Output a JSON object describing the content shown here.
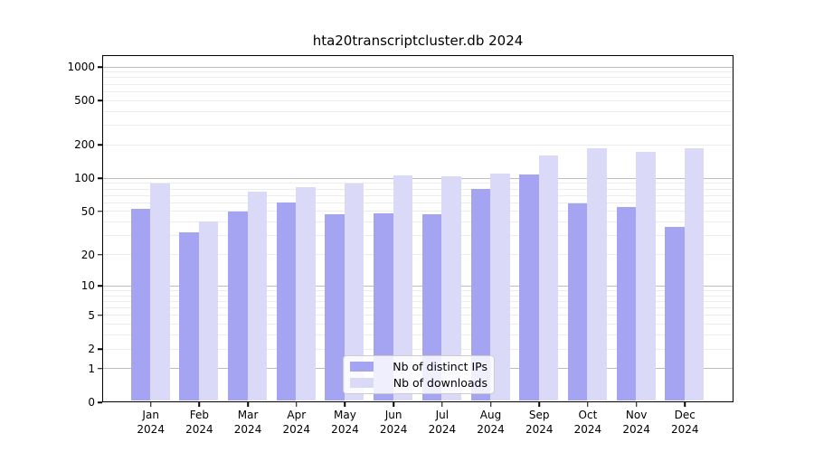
{
  "title": "hta20transcriptcluster.db 2024",
  "chart_data": {
    "type": "bar",
    "title": "hta20transcriptcluster.db 2024",
    "categories": [
      "Jan\n2024",
      "Feb\n2024",
      "Mar\n2024",
      "Apr\n2024",
      "May\n2024",
      "Jun\n2024",
      "Jul\n2024",
      "Aug\n2024",
      "Sep\n2024",
      "Oct\n2024",
      "Nov\n2024",
      "Dec\n2024"
    ],
    "series": [
      {
        "name": "Nb of distinct IPs",
        "color": "#a4a4f2",
        "values": [
          52,
          32,
          49,
          60,
          47,
          48,
          47,
          80,
          108,
          59,
          54,
          36
        ]
      },
      {
        "name": "Nb of downloads",
        "color": "#dadaf8",
        "values": [
          88,
          40,
          75,
          83,
          88,
          105,
          104,
          110,
          160,
          186,
          170,
          186
        ]
      }
    ],
    "xlabel": "",
    "ylabel": "",
    "yscale": "log1p",
    "yticks": [
      0,
      1,
      2,
      5,
      10,
      20,
      50,
      100,
      200,
      500,
      1000
    ],
    "ylim": [
      0,
      1275
    ],
    "grid": "horizontal major+minor",
    "legend_position": "bottom-center",
    "colors": {
      "major_grid": "#bdbdbd",
      "minor_grid": "#ececec",
      "axis": "#000000",
      "background": "#ffffff"
    }
  }
}
